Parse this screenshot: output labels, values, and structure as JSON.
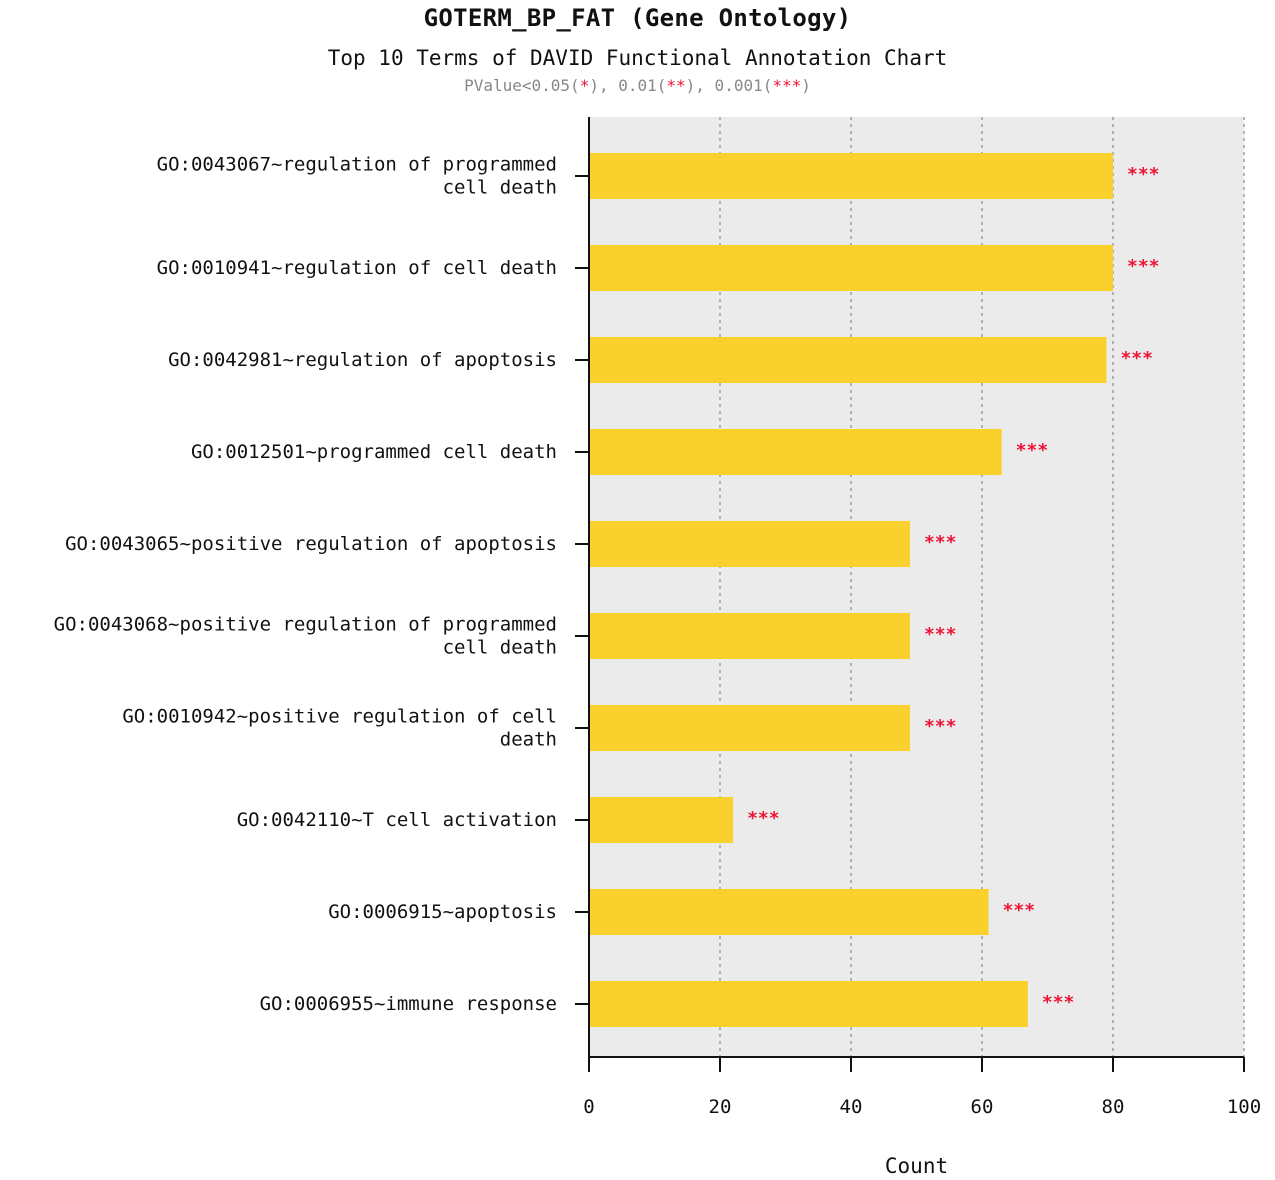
{
  "title": "GOTERM_BP_FAT (Gene Ontology)",
  "subtitle": "Top 10 Terms of DAVID Functional Annotation Chart",
  "legend": {
    "prefix": "PValue<0.05(",
    "star1": "*",
    "mid1": "), 0.01(",
    "star2": "**",
    "mid2": "), 0.001(",
    "star3": "***",
    "suffix": ")"
  },
  "colors": {
    "bar": "#fad02c",
    "plot_background": "#ebebeb",
    "significance": "#ee1133",
    "legend_text": "#888888"
  },
  "chart_data": {
    "type": "bar",
    "orientation": "horizontal",
    "categories": [
      [
        "GO:0043067~regulation of programmed",
        "cell death"
      ],
      [
        "GO:0010941~regulation of cell death"
      ],
      [
        "GO:0042981~regulation of apoptosis"
      ],
      [
        "GO:0012501~programmed cell death"
      ],
      [
        "GO:0043065~positive regulation of apoptosis"
      ],
      [
        "GO:0043068~positive regulation of programmed",
        "cell death"
      ],
      [
        "GO:0010942~positive regulation of cell",
        "death"
      ],
      [
        "GO:0042110~T cell activation"
      ],
      [
        "GO:0006915~apoptosis"
      ],
      [
        "GO:0006955~immune response"
      ]
    ],
    "values": [
      80,
      80,
      79,
      63,
      49,
      49,
      49,
      22,
      61,
      67
    ],
    "significance": [
      "***",
      "***",
      "***",
      "***",
      "***",
      "***",
      "***",
      "***",
      "***",
      "***"
    ],
    "xlabel": "Count",
    "ylabel": "",
    "xlim": [
      0,
      100
    ],
    "xticks": [
      0,
      20,
      40,
      60,
      80,
      100
    ],
    "grid": "vertical dashed",
    "legend_position": "top-center"
  }
}
